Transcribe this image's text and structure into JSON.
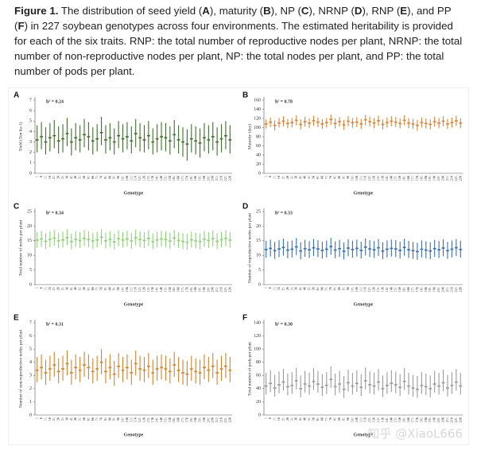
{
  "caption": {
    "parts": [
      "Figure 1.",
      " The distribution of seed yield (",
      "A",
      "), maturity (",
      "B",
      "), NP (",
      "C",
      "), NRNP (",
      "D",
      "), RNP (",
      "E",
      "), and PP (",
      "F",
      ") in 227 soybean genotypes across four environments. The estimated heritability is provided for each of the six traits. RNP: the total number of reproductive nodes per plant, NRNP: the total number of non-reproductive nodes per plant, NP: the total nodes per plant, and PP: the total number of pods per plant."
    ]
  },
  "watermark": "知乎 @XiaoL666",
  "chart_data": [
    {
      "type": "box",
      "panel": "A",
      "annotation": "h² = 0.24",
      "ylabel": "Yield (Ton ha-1)",
      "xlabel": "Genotype",
      "color": "#3f6e2c",
      "categories": [
        "1",
        "6",
        "11",
        "16",
        "21",
        "26",
        "31",
        "36",
        "41",
        "46",
        "51",
        "56",
        "61",
        "66",
        "71",
        "76",
        "81",
        "86",
        "91",
        "96",
        "101",
        "106",
        "111",
        "116",
        "121",
        "126",
        "131",
        "136",
        "141",
        "146",
        "151",
        "156",
        "161",
        "166",
        "171",
        "176",
        "181",
        "186",
        "191",
        "196",
        "201",
        "206",
        "211",
        "216",
        "221",
        "226"
      ],
      "values": [
        3.2,
        3.5,
        3.0,
        3.4,
        3.6,
        3.1,
        3.3,
        3.8,
        3.0,
        3.4,
        3.2,
        3.7,
        3.5,
        3.1,
        3.3,
        3.9,
        3.2,
        3.4,
        3.0,
        3.6,
        3.3,
        3.5,
        3.1,
        3.8,
        3.4,
        3.2,
        3.6,
        3.0,
        3.3,
        3.5,
        3.4,
        3.1,
        3.7,
        3.2,
        3.0,
        2.8,
        3.3,
        3.1,
        2.9,
        3.4,
        3.2,
        3.5,
        3.0,
        3.3,
        3.6,
        3.2
      ],
      "low": [
        2.0,
        2.3,
        1.8,
        2.1,
        2.4,
        1.9,
        2.0,
        2.6,
        1.7,
        2.2,
        2.0,
        2.5,
        2.2,
        1.8,
        2.1,
        2.7,
        1.9,
        2.2,
        1.8,
        2.4,
        2.0,
        2.3,
        1.9,
        2.5,
        2.1,
        2.0,
        2.3,
        1.8,
        2.0,
        2.2,
        2.1,
        1.8,
        2.4,
        1.9,
        1.6,
        1.2,
        2.0,
        1.8,
        1.5,
        2.1,
        1.9,
        2.2,
        1.7,
        2.0,
        2.3,
        1.9
      ],
      "high": [
        4.6,
        4.9,
        4.4,
        4.8,
        5.1,
        4.5,
        4.7,
        5.3,
        4.3,
        4.8,
        4.6,
        5.2,
        4.9,
        4.4,
        4.7,
        5.4,
        4.6,
        4.8,
        4.3,
        5.0,
        4.7,
        4.9,
        4.5,
        5.2,
        4.8,
        4.6,
        5.0,
        4.3,
        4.7,
        4.9,
        4.8,
        4.5,
        5.1,
        4.6,
        4.4,
        4.2,
        4.7,
        4.5,
        4.3,
        4.8,
        4.6,
        4.9,
        4.4,
        4.7,
        5.0,
        4.6
      ],
      "ylim": [
        0,
        7
      ],
      "yticks": [
        0,
        1,
        2,
        3,
        4,
        5,
        6,
        7
      ]
    },
    {
      "type": "box",
      "panel": "B",
      "annotation": "h² = 0.78",
      "ylabel": "Maturity (day)",
      "xlabel": "Genotype",
      "color": "#d9853b",
      "categories": [
        "1",
        "6",
        "11",
        "16",
        "21",
        "26",
        "31",
        "36",
        "41",
        "46",
        "51",
        "56",
        "61",
        "66",
        "71",
        "76",
        "81",
        "86",
        "91",
        "96",
        "101",
        "106",
        "111",
        "116",
        "121",
        "126",
        "131",
        "136",
        "141",
        "146",
        "151",
        "156",
        "161",
        "166",
        "171",
        "176",
        "181",
        "186",
        "191",
        "196",
        "201",
        "206",
        "211",
        "216",
        "221",
        "226"
      ],
      "values": [
        108,
        112,
        105,
        110,
        114,
        109,
        111,
        116,
        107,
        113,
        110,
        115,
        112,
        108,
        111,
        118,
        109,
        113,
        106,
        114,
        111,
        112,
        108,
        117,
        113,
        110,
        115,
        107,
        111,
        114,
        112,
        109,
        116,
        110,
        108,
        105,
        111,
        109,
        107,
        113,
        110,
        114,
        108,
        111,
        115,
        110
      ],
      "low": [
        98,
        101,
        94,
        100,
        103,
        99,
        100,
        105,
        96,
        102,
        99,
        104,
        101,
        97,
        100,
        106,
        98,
        102,
        95,
        103,
        100,
        101,
        97,
        105,
        102,
        99,
        104,
        96,
        100,
        103,
        101,
        98,
        105,
        99,
        97,
        93,
        100,
        98,
        96,
        102,
        99,
        103,
        97,
        100,
        104,
        99
      ],
      "high": [
        118,
        122,
        116,
        121,
        125,
        119,
        121,
        127,
        118,
        124,
        120,
        126,
        122,
        119,
        121,
        129,
        120,
        123,
        117,
        125,
        121,
        123,
        119,
        128,
        124,
        121,
        126,
        118,
        122,
        125,
        123,
        120,
        127,
        121,
        119,
        117,
        122,
        120,
        118,
        124,
        121,
        125,
        119,
        122,
        126,
        121
      ],
      "ylim": [
        0,
        160
      ],
      "yticks": [
        0,
        20,
        40,
        60,
        80,
        100,
        120,
        140,
        160
      ]
    },
    {
      "type": "box",
      "panel": "C",
      "annotation": "h² = 0.34",
      "ylabel": "Total number of nodes per plant",
      "xlabel": "Genotype",
      "color": "#8fd17a",
      "categories": [
        "1",
        "6",
        "11",
        "16",
        "21",
        "26",
        "31",
        "36",
        "41",
        "46",
        "51",
        "56",
        "61",
        "66",
        "71",
        "76",
        "81",
        "86",
        "91",
        "96",
        "101",
        "106",
        "111",
        "116",
        "121",
        "126",
        "131",
        "136",
        "141",
        "146",
        "151",
        "156",
        "161",
        "166",
        "171",
        "176",
        "181",
        "186",
        "191",
        "196",
        "201",
        "206",
        "211",
        "216",
        "221",
        "226"
      ],
      "values": [
        15.2,
        15.6,
        14.8,
        15.4,
        15.9,
        15.0,
        15.3,
        16.1,
        14.7,
        15.5,
        15.1,
        15.8,
        15.4,
        14.9,
        15.3,
        16.2,
        15.0,
        15.5,
        14.6,
        15.7,
        15.2,
        15.6,
        14.9,
        16.0,
        15.4,
        15.1,
        15.8,
        14.7,
        15.3,
        15.6,
        15.4,
        14.9,
        15.9,
        15.1,
        14.8,
        14.5,
        15.3,
        15.0,
        14.7,
        15.5,
        15.1,
        15.7,
        14.8,
        15.3,
        15.8,
        15.2
      ],
      "low": [
        12.6,
        13.0,
        12.2,
        12.8,
        13.3,
        12.4,
        12.7,
        13.5,
        12.1,
        12.9,
        12.5,
        13.2,
        12.8,
        12.3,
        12.7,
        13.6,
        12.4,
        12.9,
        12.0,
        13.1,
        12.6,
        13.0,
        12.3,
        13.4,
        12.8,
        12.5,
        13.2,
        12.1,
        12.7,
        13.0,
        12.8,
        12.3,
        13.3,
        12.5,
        12.2,
        11.9,
        12.7,
        12.4,
        12.1,
        12.9,
        12.5,
        13.1,
        12.2,
        12.7,
        13.2,
        12.6
      ],
      "high": [
        18.0,
        18.4,
        17.6,
        18.2,
        18.7,
        17.8,
        18.1,
        18.9,
        17.5,
        18.3,
        17.9,
        18.6,
        18.2,
        17.7,
        18.1,
        19.0,
        17.8,
        18.3,
        17.4,
        18.5,
        18.0,
        18.4,
        17.7,
        18.8,
        18.2,
        17.9,
        18.6,
        17.5,
        18.1,
        18.4,
        18.2,
        17.7,
        18.7,
        17.9,
        17.6,
        17.3,
        18.1,
        17.8,
        17.5,
        18.3,
        17.9,
        18.5,
        17.6,
        18.1,
        18.6,
        18.0
      ],
      "ylim": [
        0,
        25
      ],
      "yticks": [
        0,
        5,
        10,
        15,
        20,
        25
      ]
    },
    {
      "type": "box",
      "panel": "D",
      "annotation": "h² = 0.33",
      "ylabel": "Number of reproductive nodes per plant",
      "xlabel": "Genotype",
      "color": "#3b6fb0",
      "categories": [
        "1",
        "6",
        "11",
        "16",
        "21",
        "26",
        "31",
        "36",
        "41",
        "46",
        "51",
        "56",
        "61",
        "66",
        "71",
        "76",
        "81",
        "86",
        "91",
        "96",
        "101",
        "106",
        "111",
        "116",
        "121",
        "126",
        "131",
        "136",
        "141",
        "146",
        "151",
        "156",
        "161",
        "166",
        "171",
        "176",
        "181",
        "186",
        "191",
        "196",
        "201",
        "206",
        "211",
        "216",
        "221",
        "226"
      ],
      "values": [
        12.0,
        12.4,
        11.6,
        12.2,
        12.7,
        11.8,
        12.1,
        12.9,
        11.5,
        12.3,
        11.9,
        12.6,
        12.2,
        11.7,
        12.1,
        13.0,
        11.8,
        12.3,
        11.4,
        12.5,
        12.0,
        12.4,
        11.7,
        12.8,
        12.2,
        11.9,
        12.6,
        11.5,
        12.1,
        12.4,
        12.2,
        11.7,
        12.7,
        11.9,
        11.6,
        11.3,
        12.1,
        11.8,
        11.5,
        12.3,
        11.9,
        12.5,
        11.6,
        12.1,
        12.6,
        12.0
      ],
      "low": [
        9.2,
        9.6,
        8.8,
        9.4,
        9.9,
        9.0,
        9.3,
        10.1,
        8.7,
        9.5,
        9.1,
        9.8,
        9.4,
        8.9,
        9.3,
        10.2,
        9.0,
        9.5,
        8.6,
        9.7,
        9.2,
        9.6,
        8.9,
        10.0,
        9.4,
        9.1,
        9.8,
        8.7,
        9.3,
        9.6,
        9.4,
        8.9,
        9.9,
        9.1,
        8.8,
        8.5,
        9.3,
        9.0,
        8.7,
        9.5,
        9.1,
        9.7,
        8.8,
        9.3,
        9.8,
        9.2
      ],
      "high": [
        15.0,
        15.4,
        14.6,
        15.2,
        15.7,
        14.8,
        15.1,
        15.9,
        14.5,
        15.3,
        14.9,
        15.6,
        15.2,
        14.7,
        15.1,
        16.0,
        14.8,
        15.3,
        14.4,
        15.5,
        15.0,
        15.4,
        14.7,
        15.8,
        15.2,
        14.9,
        15.6,
        14.5,
        15.1,
        15.4,
        15.2,
        14.7,
        15.7,
        14.9,
        14.6,
        14.3,
        15.1,
        14.8,
        14.5,
        15.3,
        14.9,
        15.5,
        14.6,
        15.1,
        15.6,
        15.0
      ],
      "ylim": [
        0,
        25
      ],
      "yticks": [
        0,
        5,
        10,
        15,
        20,
        25
      ]
    },
    {
      "type": "box",
      "panel": "E",
      "annotation": "h² = 0.31",
      "ylabel": "Number of non-reproductive nodes per plant",
      "xlabel": "Genotype",
      "color": "#d4822c",
      "categories": [
        "1",
        "6",
        "11",
        "16",
        "21",
        "26",
        "31",
        "36",
        "41",
        "46",
        "51",
        "56",
        "61",
        "66",
        "71",
        "76",
        "81",
        "86",
        "91",
        "96",
        "101",
        "106",
        "111",
        "116",
        "121",
        "126",
        "131",
        "136",
        "141",
        "146",
        "151",
        "156",
        "161",
        "166",
        "171",
        "176",
        "181",
        "186",
        "191",
        "196",
        "201",
        "206",
        "211",
        "216",
        "221",
        "226"
      ],
      "values": [
        3.4,
        3.6,
        3.2,
        3.5,
        3.8,
        3.3,
        3.5,
        3.9,
        3.2,
        3.6,
        3.4,
        3.8,
        3.6,
        3.3,
        3.5,
        4.0,
        3.3,
        3.6,
        3.1,
        3.7,
        3.4,
        3.6,
        3.2,
        3.9,
        3.5,
        3.4,
        3.7,
        3.2,
        3.5,
        3.6,
        3.5,
        3.3,
        3.8,
        3.4,
        3.2,
        3.1,
        3.5,
        3.3,
        3.2,
        3.6,
        3.4,
        3.7,
        3.2,
        3.5,
        3.7,
        3.4
      ],
      "low": [
        2.5,
        2.7,
        2.3,
        2.6,
        2.9,
        2.4,
        2.6,
        3.0,
        2.3,
        2.7,
        2.5,
        2.9,
        2.7,
        2.4,
        2.6,
        3.1,
        2.4,
        2.7,
        2.2,
        2.8,
        2.5,
        2.7,
        2.3,
        3.0,
        2.6,
        2.5,
        2.8,
        2.3,
        2.6,
        2.7,
        2.6,
        2.4,
        2.9,
        2.5,
        2.3,
        2.2,
        2.6,
        2.4,
        2.3,
        2.7,
        2.5,
        2.8,
        2.3,
        2.6,
        2.8,
        2.5
      ],
      "high": [
        4.4,
        4.6,
        4.2,
        4.5,
        4.8,
        4.3,
        4.5,
        4.9,
        4.2,
        4.6,
        4.4,
        4.8,
        4.6,
        4.3,
        4.5,
        5.0,
        4.3,
        4.6,
        4.1,
        4.7,
        4.4,
        4.6,
        4.2,
        4.9,
        4.5,
        4.4,
        4.7,
        4.2,
        4.5,
        4.6,
        4.5,
        4.3,
        4.8,
        4.4,
        4.2,
        4.1,
        4.5,
        4.3,
        4.2,
        4.6,
        4.4,
        4.7,
        4.2,
        4.5,
        4.7,
        4.4
      ],
      "ylim": [
        0,
        7
      ],
      "yticks": [
        0,
        1,
        2,
        3,
        4,
        5,
        6,
        7
      ]
    },
    {
      "type": "box",
      "panel": "F",
      "annotation": "h² = 0.30",
      "ylabel": "Total number of pods per plant",
      "xlabel": "Genotype",
      "color": "#9a9a9a",
      "categories": [
        "1",
        "6",
        "11",
        "16",
        "21",
        "26",
        "31",
        "36",
        "41",
        "46",
        "51",
        "56",
        "61",
        "66",
        "71",
        "76",
        "81",
        "86",
        "91",
        "96",
        "101",
        "106",
        "111",
        "116",
        "121",
        "126",
        "131",
        "136",
        "141",
        "146",
        "151",
        "156",
        "161",
        "166",
        "171",
        "176",
        "181",
        "186",
        "191",
        "196",
        "201",
        "206",
        "211",
        "216",
        "221",
        "226"
      ],
      "values": [
        44,
        48,
        41,
        46,
        50,
        43,
        45,
        52,
        40,
        47,
        44,
        51,
        47,
        42,
        45,
        54,
        43,
        47,
        39,
        49,
        44,
        48,
        42,
        52,
        46,
        44,
        50,
        40,
        45,
        48,
        46,
        42,
        51,
        44,
        41,
        39,
        45,
        43,
        40,
        47,
        44,
        49,
        41,
        45,
        50,
        44
      ],
      "low": [
        31,
        35,
        28,
        33,
        37,
        30,
        32,
        39,
        27,
        34,
        31,
        38,
        34,
        29,
        32,
        41,
        30,
        34,
        26,
        36,
        31,
        35,
        29,
        39,
        33,
        31,
        37,
        27,
        32,
        35,
        33,
        29,
        38,
        31,
        28,
        26,
        32,
        30,
        27,
        34,
        31,
        36,
        28,
        32,
        37,
        31
      ],
      "high": [
        64,
        68,
        61,
        66,
        70,
        63,
        65,
        72,
        60,
        67,
        64,
        71,
        67,
        62,
        65,
        74,
        63,
        67,
        59,
        69,
        64,
        68,
        62,
        72,
        66,
        64,
        70,
        60,
        65,
        68,
        66,
        62,
        71,
        64,
        61,
        59,
        65,
        63,
        60,
        67,
        64,
        69,
        61,
        65,
        70,
        64
      ],
      "ylim": [
        0,
        140
      ],
      "yticks": [
        0,
        20,
        40,
        60,
        80,
        100,
        120,
        140
      ]
    }
  ]
}
